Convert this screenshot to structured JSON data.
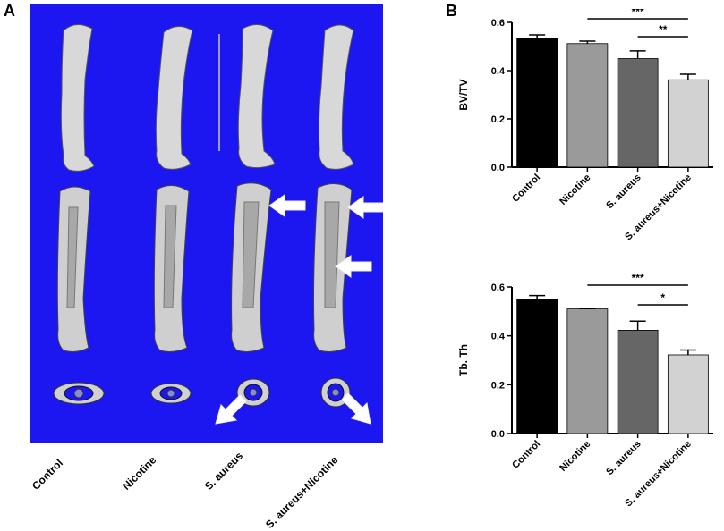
{
  "panel_a": {
    "letter": "A",
    "groups": [
      "Control",
      "Nicotine",
      "S. aureus",
      "S. aureus+Nicotine"
    ]
  },
  "panel_b": {
    "letter": "B"
  },
  "chart_data": [
    {
      "type": "bar",
      "ylabel": "BV/TV",
      "categories": [
        "Control",
        "Nicotine",
        "S. aureus",
        "S. aureus+Nicotine"
      ],
      "values": [
        0.535,
        0.512,
        0.45,
        0.362
      ],
      "errors": [
        0.013,
        0.01,
        0.032,
        0.023
      ],
      "bar_colors": [
        "#000000",
        "#9a9a9a",
        "#666666",
        "#d2d2d2"
      ],
      "ylim": [
        0,
        0.6
      ],
      "yticks": [
        "0.0",
        "0.2",
        "0.4",
        "0.6"
      ],
      "significance": [
        {
          "from": "Nicotine",
          "to": "S. aureus+Nicotine",
          "label": "***"
        },
        {
          "from": "S. aureus",
          "to": "S. aureus+Nicotine",
          "label": "**"
        }
      ]
    },
    {
      "type": "bar",
      "ylabel": "Tb. Th",
      "categories": [
        "Control",
        "Nicotine",
        "S. aureus",
        "S. aureus+Nicotine"
      ],
      "values": [
        0.55,
        0.51,
        0.423,
        0.322
      ],
      "errors": [
        0.015,
        0.003,
        0.037,
        0.02
      ],
      "bar_colors": [
        "#000000",
        "#9a9a9a",
        "#666666",
        "#d2d2d2"
      ],
      "ylim": [
        0,
        0.6
      ],
      "yticks": [
        "0.0",
        "0.2",
        "0.4",
        "0.6"
      ],
      "significance": [
        {
          "from": "Nicotine",
          "to": "S. aureus+Nicotine",
          "label": "***"
        },
        {
          "from": "S. aureus",
          "to": "S. aureus+Nicotine",
          "label": "*"
        }
      ]
    }
  ]
}
